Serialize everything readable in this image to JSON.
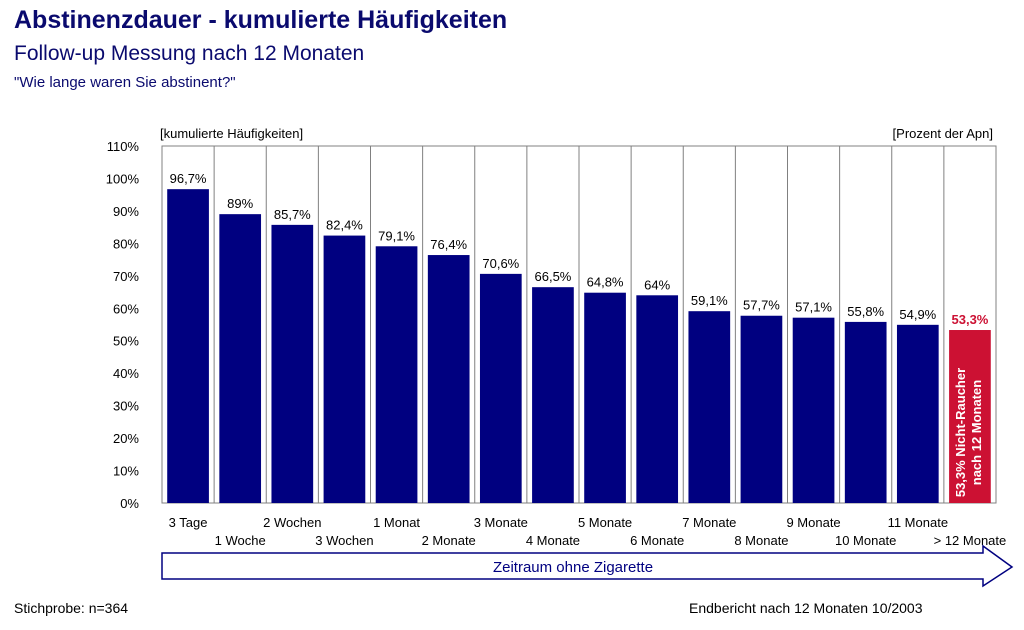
{
  "header": {
    "title": "Abstinenzdauer - kumulierte Häufigkeiten",
    "subtitle": "Follow-up Messung nach 12 Monaten",
    "question": "\"Wie lange waren Sie abstinent?\""
  },
  "footer": {
    "sample": "Stichprobe: n=364",
    "report": "Endbericht nach 12 Monaten 10/2003"
  },
  "chart_data": {
    "type": "bar",
    "title": "Abstinenzdauer - kumulierte Häufigkeiten",
    "ylabel": "[kumulierte Häufigkeiten]",
    "y_unit_label": "[Prozent der Apn]",
    "xlabel": "Zeitraum ohne Zigarette",
    "ylim": [
      0,
      110
    ],
    "yticks": [
      "0%",
      "10%",
      "20%",
      "30%",
      "40%",
      "50%",
      "60%",
      "70%",
      "80%",
      "90%",
      "100%",
      "110%"
    ],
    "grid": "vertical",
    "categories": [
      "3 Tage",
      "1 Woche",
      "2 Wochen",
      "3 Wochen",
      "1 Monat",
      "2 Monate",
      "3 Monate",
      "4 Monate",
      "5 Monate",
      "6 Monate",
      "7 Monate",
      "8 Monate",
      "9 Monate",
      "10 Monate",
      "11 Monate",
      "> 12 Monate"
    ],
    "values": [
      96.7,
      89,
      85.7,
      82.4,
      79.1,
      76.4,
      70.6,
      66.5,
      64.8,
      64,
      59.1,
      57.7,
      57.1,
      55.8,
      54.9,
      53.3
    ],
    "data_labels": [
      "96,7%",
      "89%",
      "85,7%",
      "82,4%",
      "79,1%",
      "76,4%",
      "70,6%",
      "66,5%",
      "64,8%",
      "64%",
      "59,1%",
      "57,7%",
      "57,1%",
      "55,8%",
      "54,9%",
      "53,3%"
    ],
    "colors": {
      "default": "#000080",
      "highlight": "#cc1133"
    },
    "highlight_index": 15,
    "highlight_annotation": [
      "53,3% Nicht-Raucher",
      "nach 12 Monaten"
    ]
  }
}
